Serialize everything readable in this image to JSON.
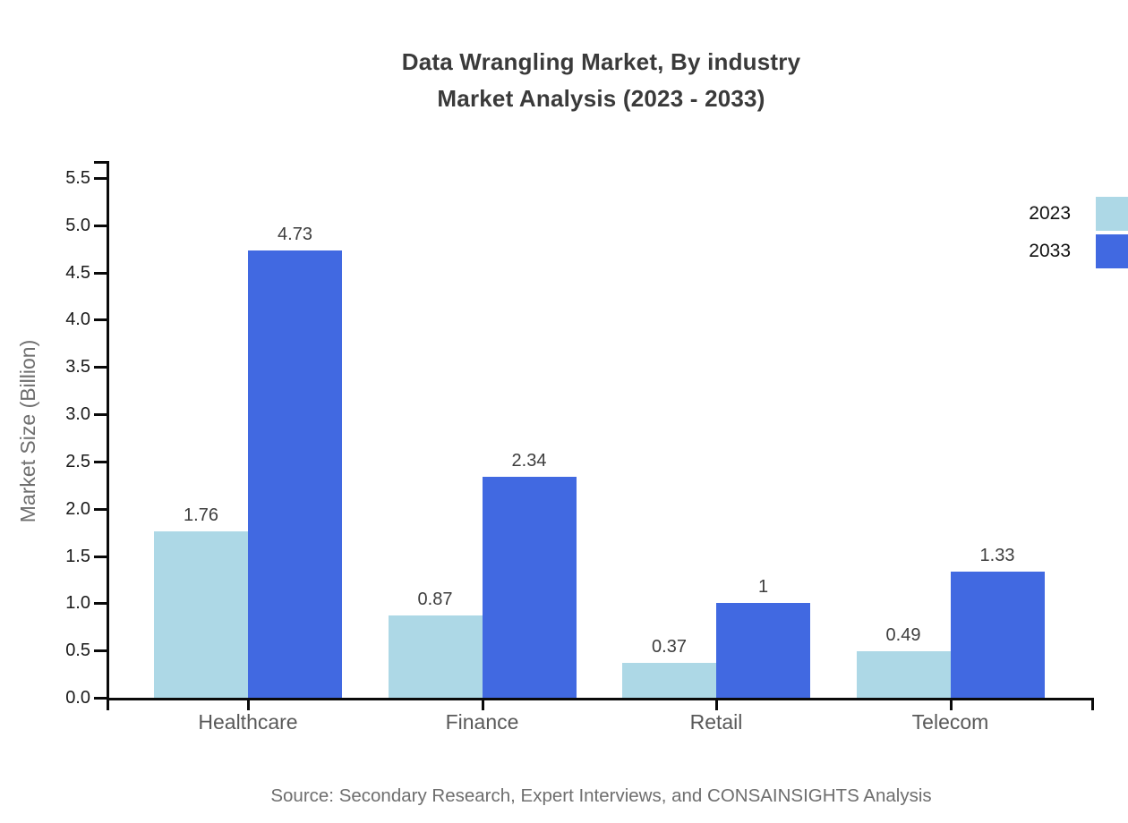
{
  "chart_data": {
    "type": "bar",
    "title": "Data Wrangling Market, By industry",
    "subtitle": "Market Analysis (2023 - 2033)",
    "categories": [
      "Healthcare",
      "Finance",
      "Retail",
      "Telecom"
    ],
    "series": [
      {
        "name": "2023",
        "color": "#ADD8E6",
        "values": [
          1.76,
          0.87,
          0.37,
          0.49
        ],
        "labels": [
          "1.76",
          "0.87",
          "0.37",
          "0.49"
        ]
      },
      {
        "name": "2033",
        "color": "#4169E1",
        "values": [
          4.73,
          2.34,
          1.0,
          1.33
        ],
        "labels": [
          "4.73",
          "2.34",
          "1",
          "1.33"
        ]
      }
    ],
    "ylabel": "Market Size (Billion)",
    "xlabel": "",
    "ylim": [
      0.0,
      5.5
    ],
    "y_ticks": [
      "0.0",
      "0.5",
      "1.0",
      "1.5",
      "2.0",
      "2.5",
      "3.0",
      "3.5",
      "4.0",
      "4.5",
      "5.0",
      "5.5"
    ],
    "grid": false,
    "legend_position": "top-right",
    "source": "Source: Secondary Research, Expert Interviews, and CONSAINSIGHTS Analysis"
  }
}
